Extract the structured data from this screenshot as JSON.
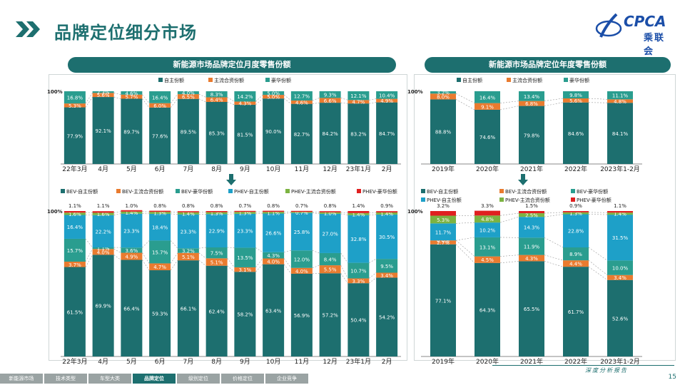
{
  "header": {
    "title": "品牌定位细分市场",
    "logo_text": "CPCA",
    "logo_cn": "乘联会"
  },
  "footer": {
    "tabs": [
      "新能源市场",
      "技术类型",
      "车型大类",
      "品牌定位",
      "级别定位",
      "价格定位",
      "企业竞争"
    ],
    "active_tab": 3,
    "report": "深度分析报告",
    "page": "15"
  },
  "colors": {
    "bev_own": "#1d6f6f",
    "bev_main": "#e97b2f",
    "bev_lux": "#2a9d8f",
    "phev_own": "#1ea0c8",
    "phev_main": "#7cb342",
    "phev_lux": "#e02020",
    "accent": "#1d6f6f"
  },
  "chart_data": [
    {
      "type": "bar",
      "title": "新能源市场品牌定位月度零售份额",
      "stacked": true,
      "ylabel_top": "100%",
      "categories": [
        "22年3月",
        "4月",
        "5月",
        "6月",
        "7月",
        "8月",
        "9月",
        "10月",
        "11月",
        "12月",
        "23年1月",
        "2月"
      ],
      "series": [
        {
          "name": "自主份额",
          "color": "#1d6f6f",
          "values": [
            77.9,
            92.1,
            89.7,
            77.6,
            89.5,
            85.3,
            81.5,
            90.0,
            82.7,
            84.2,
            83.2,
            84.7
          ],
          "labels": [
            "77.9%",
            "92.1%",
            "89.7%",
            "77.6%",
            "89.5%",
            "85.3%",
            "81.5%",
            "90.0%",
            "82.7%",
            "84.2%",
            "83.2%",
            "84.7%"
          ]
        },
        {
          "name": "主流合资份额",
          "color": "#e97b2f",
          "values": [
            5.3,
            5.6,
            5.7,
            6.0,
            6.5,
            6.4,
            4.3,
            5.0,
            4.6,
            6.6,
            4.7,
            4.9
          ],
          "labels": [
            "5.3%",
            "5.6%",
            "5.7%",
            "6.0%",
            "6.5%",
            "6.4%",
            "4.3%",
            "5.0%",
            "4.6%",
            "6.6%",
            "4.7%",
            "4.9%"
          ]
        },
        {
          "name": "豪华份额",
          "color": "#2a9d8f",
          "values": [
            16.8,
            2.3,
            4.6,
            16.4,
            4.0,
            8.3,
            14.2,
            5.0,
            12.7,
            9.3,
            12.1,
            10.4
          ],
          "labels": [
            "16.8%",
            "2.3%",
            "4.6%",
            "16.4%",
            "4.0%",
            "8.3%",
            "14.2%",
            "5.0%",
            "12.7%",
            "9.3%",
            "12.1%",
            "10.4%"
          ]
        }
      ]
    },
    {
      "type": "bar",
      "title": "新能源市场品牌定位年度零售份额",
      "stacked": true,
      "ylabel_top": "100%",
      "categories": [
        "2019年",
        "2020年",
        "2021年",
        "2022年",
        "2023年1-2月"
      ],
      "series": [
        {
          "name": "自主份额",
          "color": "#1d6f6f",
          "values": [
            88.8,
            74.6,
            79.8,
            84.6,
            84.1
          ],
          "labels": [
            "88.8%",
            "74.6%",
            "79.8%",
            "84.6%",
            "84.1%"
          ]
        },
        {
          "name": "主流合资份额",
          "color": "#e97b2f",
          "values": [
            8.0,
            9.1,
            6.8,
            5.6,
            4.8
          ],
          "labels": [
            "8.0%",
            "9.1%",
            "6.8%",
            "5.6%",
            "4.8%"
          ]
        },
        {
          "name": "豪华份额",
          "color": "#2a9d8f",
          "values": [
            3.2,
            16.4,
            13.4,
            9.8,
            11.1
          ],
          "labels": [
            "3.2%",
            "16.4%",
            "13.4%",
            "9.8%",
            "11.1%"
          ]
        }
      ]
    },
    {
      "type": "bar",
      "stacked": true,
      "ylabel_top": "100%",
      "categories": [
        "22年3月",
        "4月",
        "5月",
        "6月",
        "7月",
        "8月",
        "9月",
        "10月",
        "11月",
        "12月",
        "23年1月",
        "2月"
      ],
      "series": [
        {
          "name": "BEV-自主份额",
          "color": "#1d6f6f",
          "values": [
            61.5,
            69.9,
            66.4,
            59.3,
            66.1,
            62.4,
            58.2,
            63.4,
            56.9,
            57.2,
            50.4,
            54.2
          ]
        },
        {
          "name": "BEV-主流合资份额",
          "color": "#e97b2f",
          "values": [
            3.7,
            4.0,
            4.9,
            4.7,
            5.1,
            5.1,
            3.1,
            4.0,
            4.0,
            5.5,
            3.3,
            3.4
          ]
        },
        {
          "name": "BEV-豪华份额",
          "color": "#2a9d8f",
          "values": [
            15.7,
            1.1,
            3.6,
            15.7,
            3.2,
            7.5,
            13.5,
            4.3,
            12.0,
            8.4,
            10.7,
            9.5
          ]
        },
        {
          "name": "PHEV-自主份额",
          "color": "#1ea0c8",
          "values": [
            16.4,
            22.2,
            23.3,
            18.4,
            23.3,
            22.9,
            23.3,
            26.6,
            25.8,
            27.0,
            32.8,
            30.5
          ]
        },
        {
          "name": "PHEV-主流合资份额",
          "color": "#7cb342",
          "values": [
            1.6,
            1.6,
            1.4,
            1.3,
            1.4,
            1.3,
            1.3,
            1.1,
            0.7,
            1.0,
            1.4,
            1.4
          ]
        },
        {
          "name": "PHEV-豪华份额",
          "color": "#e02020",
          "values": [
            1.1,
            1.1,
            1.0,
            0.8,
            0.8,
            0.8,
            0.7,
            0.8,
            0.7,
            0.8,
            1.4,
            0.9
          ]
        }
      ]
    },
    {
      "type": "bar",
      "stacked": true,
      "ylabel_top": "100%",
      "categories": [
        "2019年",
        "2020年",
        "2021年",
        "2022年",
        "2023年1-2月"
      ],
      "series": [
        {
          "name": "BEV-自主份额",
          "color": "#1d6f6f",
          "values": [
            77.1,
            64.3,
            65.5,
            61.7,
            52.6
          ]
        },
        {
          "name": "BEV-主流合资份额",
          "color": "#e97b2f",
          "values": [
            2.7,
            4.5,
            4.3,
            4.4,
            3.4
          ]
        },
        {
          "name": "BEV-豪华份额",
          "color": "#2a9d8f",
          "values": [
            0.0,
            13.1,
            11.9,
            8.9,
            10.0
          ]
        },
        {
          "name": "PHEV-自主份额",
          "color": "#1ea0c8",
          "values": [
            11.7,
            10.2,
            14.3,
            22.8,
            31.5
          ]
        },
        {
          "name": "PHEV-主流合资份额",
          "color": "#7cb342",
          "values": [
            5.3,
            4.8,
            2.5,
            1.3,
            1.4
          ]
        },
        {
          "name": "PHEV-豪华份额",
          "color": "#e02020",
          "values": [
            3.2,
            3.3,
            1.5,
            0.9,
            1.1
          ]
        }
      ]
    }
  ]
}
